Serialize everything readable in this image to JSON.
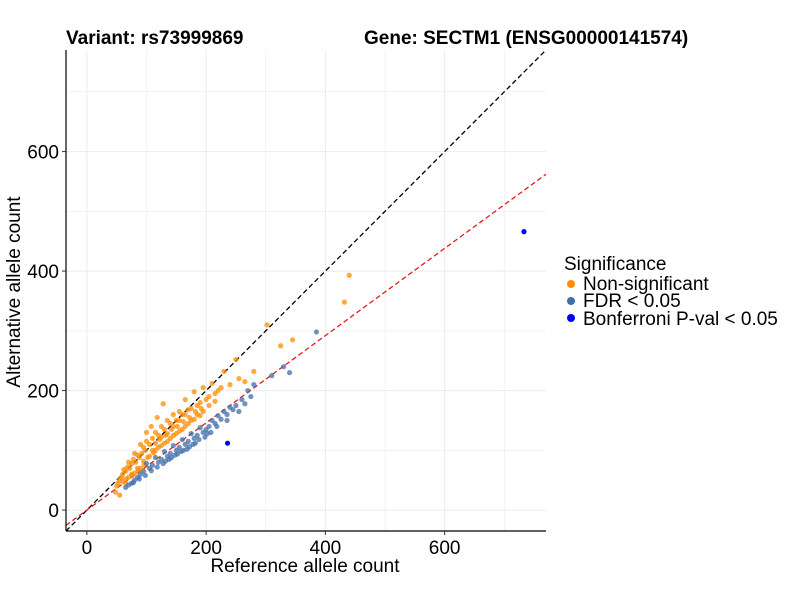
{
  "header": {
    "variant_label": "Variant: rs73999869",
    "gene_label": "Gene: SECTM1 (ENSG00000141574)"
  },
  "chart_data": {
    "type": "scatter",
    "xlabel": "Reference allele count",
    "ylabel": "Alternative allele count",
    "xlim": [
      -35,
      770
    ],
    "ylim": [
      -35,
      770
    ],
    "xticks": [
      0,
      200,
      400,
      600
    ],
    "yticks": [
      0,
      200,
      400,
      600
    ],
    "grid": true,
    "reference_lines": [
      {
        "name": "identity",
        "slope": 1.0,
        "intercept": 0,
        "color": "#000000",
        "dash": true
      },
      {
        "name": "fit",
        "slope": 0.73,
        "intercept": 0,
        "color": "#e41a1c",
        "dash": true
      }
    ],
    "legend": {
      "title": "Significance",
      "position": "right",
      "entries": [
        {
          "label": "Non-significant",
          "color": "#ff8c00"
        },
        {
          "label": "FDR < 0.05",
          "color": "#3f6ea8"
        },
        {
          "label": "Bonferroni P-val < 0.05",
          "color": "#0000ff"
        }
      ]
    },
    "series": [
      {
        "name": "Non-significant",
        "color": "#ff8c00",
        "points": [
          [
            440,
            393
          ],
          [
            432,
            348
          ],
          [
            302,
            310
          ],
          [
            345,
            285
          ],
          [
            325,
            275
          ],
          [
            280,
            232
          ],
          [
            255,
            220
          ],
          [
            250,
            252
          ],
          [
            265,
            215
          ],
          [
            240,
            210
          ],
          [
            230,
            232
          ],
          [
            225,
            205
          ],
          [
            220,
            200
          ],
          [
            215,
            195
          ],
          [
            210,
            212
          ],
          [
            205,
            190
          ],
          [
            200,
            185
          ],
          [
            195,
            205
          ],
          [
            190,
            180
          ],
          [
            185,
            175
          ],
          [
            180,
            198
          ],
          [
            175,
            170
          ],
          [
            170,
            168
          ],
          [
            165,
            185
          ],
          [
            160,
            160
          ],
          [
            155,
            165
          ],
          [
            150,
            150
          ],
          [
            145,
            160
          ],
          [
            140,
            145
          ],
          [
            135,
            150
          ],
          [
            130,
            135
          ],
          [
            128,
            178
          ],
          [
            125,
            140
          ],
          [
            120,
            125
          ],
          [
            118,
            155
          ],
          [
            115,
            130
          ],
          [
            110,
            120
          ],
          [
            108,
            140
          ],
          [
            105,
            110
          ],
          [
            100,
            115
          ],
          [
            98,
            100
          ],
          [
            95,
            105
          ],
          [
            92,
            95
          ],
          [
            90,
            110
          ],
          [
            88,
            88
          ],
          [
            85,
            92
          ],
          [
            82,
            80
          ],
          [
            80,
            95
          ],
          [
            78,
            85
          ],
          [
            75,
            78
          ],
          [
            72,
            70
          ],
          [
            70,
            80
          ],
          [
            68,
            72
          ],
          [
            65,
            65
          ],
          [
            62,
            68
          ],
          [
            60,
            60
          ],
          [
            58,
            55
          ],
          [
            55,
            50
          ],
          [
            52,
            45
          ],
          [
            50,
            40
          ],
          [
            48,
            30
          ],
          [
            55,
            25
          ],
          [
            65,
            45
          ],
          [
            75,
            60
          ],
          [
            85,
            70
          ],
          [
            95,
            82
          ],
          [
            105,
            90
          ],
          [
            115,
            100
          ],
          [
            125,
            108
          ],
          [
            135,
            115
          ],
          [
            145,
            125
          ],
          [
            155,
            132
          ],
          [
            165,
            140
          ],
          [
            175,
            150
          ],
          [
            185,
            160
          ],
          [
            195,
            165
          ],
          [
            205,
            175
          ],
          [
            215,
            182
          ],
          [
            100,
            130
          ],
          [
            110,
            100
          ],
          [
            120,
            105
          ],
          [
            130,
            112
          ],
          [
            140,
            120
          ],
          [
            150,
            128
          ],
          [
            160,
            135
          ],
          [
            170,
            145
          ],
          [
            180,
            152
          ],
          [
            190,
            158
          ],
          [
            102,
            88
          ],
          [
            112,
            96
          ],
          [
            122,
            118
          ],
          [
            132,
            125
          ],
          [
            142,
            135
          ],
          [
            152,
            140
          ],
          [
            162,
            148
          ],
          [
            172,
            155
          ],
          [
            182,
            165
          ],
          [
            192,
            170
          ],
          [
            90,
            70
          ],
          [
            80,
            62
          ],
          [
            70,
            55
          ],
          [
            60,
            48
          ],
          [
            96,
            76
          ],
          [
            86,
            66
          ],
          [
            76,
            58
          ],
          [
            66,
            52
          ],
          [
            145,
            140
          ],
          [
            155,
            150
          ],
          [
            165,
            160
          ],
          [
            135,
            128
          ],
          [
            125,
            122
          ],
          [
            115,
            112
          ]
        ]
      },
      {
        "name": "FDR < 0.05",
        "color": "#3f6ea8",
        "points": [
          [
            385,
            298
          ],
          [
            340,
            230
          ],
          [
            330,
            240
          ],
          [
            310,
            225
          ],
          [
            280,
            210
          ],
          [
            275,
            190
          ],
          [
            270,
            200
          ],
          [
            265,
            178
          ],
          [
            260,
            185
          ],
          [
            250,
            175
          ],
          [
            245,
            168
          ],
          [
            240,
            172
          ],
          [
            235,
            160
          ],
          [
            230,
            165
          ],
          [
            225,
            152
          ],
          [
            220,
            158
          ],
          [
            215,
            145
          ],
          [
            210,
            150
          ],
          [
            205,
            140
          ],
          [
            200,
            135
          ],
          [
            195,
            130
          ],
          [
            190,
            138
          ],
          [
            185,
            125
          ],
          [
            180,
            120
          ],
          [
            175,
            128
          ],
          [
            170,
            115
          ],
          [
            165,
            110
          ],
          [
            160,
            118
          ],
          [
            155,
            105
          ],
          [
            150,
            100
          ],
          [
            145,
            108
          ],
          [
            140,
            95
          ],
          [
            135,
            90
          ],
          [
            130,
            98
          ],
          [
            125,
            85
          ],
          [
            120,
            80
          ],
          [
            115,
            88
          ],
          [
            110,
            75
          ],
          [
            105,
            70
          ],
          [
            100,
            78
          ],
          [
            95,
            65
          ],
          [
            90,
            60
          ],
          [
            85,
            55
          ],
          [
            80,
            50
          ],
          [
            75,
            45
          ],
          [
            70,
            42
          ],
          [
            65,
            38
          ],
          [
            208,
            130
          ],
          [
            198,
            122
          ],
          [
            188,
            118
          ],
          [
            178,
            110
          ],
          [
            168,
            102
          ],
          [
            158,
            98
          ],
          [
            148,
            92
          ],
          [
            138,
            85
          ],
          [
            128,
            78
          ],
          [
            118,
            72
          ],
          [
            108,
            66
          ],
          [
            98,
            58
          ],
          [
            88,
            52
          ],
          [
            78,
            46
          ],
          [
            255,
            165
          ],
          [
            235,
            150
          ],
          [
            218,
            140
          ],
          [
            202,
            128
          ],
          [
            182,
            112
          ],
          [
            172,
            106
          ],
          [
            162,
            100
          ],
          [
            152,
            94
          ],
          [
            142,
            88
          ],
          [
            132,
            82
          ]
        ]
      },
      {
        "name": "Bonferroni P-val < 0.05",
        "color": "#0000ff",
        "points": [
          [
            733,
            466
          ],
          [
            236,
            112
          ]
        ]
      }
    ]
  }
}
